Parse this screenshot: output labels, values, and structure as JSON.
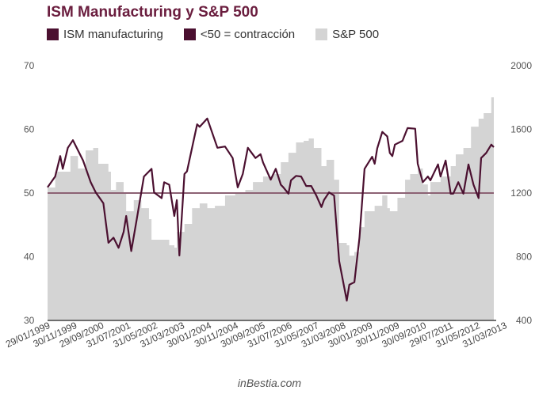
{
  "chart_data": {
    "type": "line",
    "title": "ISM Manufacturing y S&P 500",
    "legend": [
      {
        "label": "ISM manufacturing",
        "color": "#4b1030"
      },
      {
        "label": "<50 = contracción",
        "color": "#4b1030"
      },
      {
        "label": "S&P 500",
        "color": "#d4d4d4"
      }
    ],
    "legend_placement": "top-left",
    "grid": false,
    "left_axis": {
      "range": [
        30,
        70
      ],
      "ticks": [
        "70",
        "60",
        "50",
        "40",
        "30"
      ]
    },
    "right_axis": {
      "range": [
        400,
        2000
      ],
      "ticks": [
        "2000",
        "1600",
        "1200",
        "800",
        "400"
      ]
    },
    "x_range": [
      "1999-01",
      "2013-09"
    ],
    "x_tick_labels": [
      "29/01/1999",
      "30/11/1999",
      "29/09/2000",
      "31/07/2001",
      "31/05/2002",
      "31/03/2003",
      "30/01/2004",
      "30/11/2004",
      "30/09/2005",
      "31/07/2006",
      "31/05/2007",
      "31/03/2008",
      "30/01/2009",
      "30/11/2009",
      "30/09/2010",
      "29/07/2011",
      "31/05/2012",
      "31/03/2013"
    ],
    "threshold": 50,
    "series": [
      {
        "name": "ISM manufacturing",
        "axis": "left",
        "type": "line",
        "color": "#4b1030",
        "points": [
          [
            "1999-01",
            50.9
          ],
          [
            "1999-04",
            52.6
          ],
          [
            "1999-06",
            55.8
          ],
          [
            "1999-07",
            53.8
          ],
          [
            "1999-09",
            57.1
          ],
          [
            "1999-11",
            58.3
          ],
          [
            "2000-03",
            55.1
          ],
          [
            "2000-06",
            51.7
          ],
          [
            "2000-08",
            50.1
          ],
          [
            "2000-11",
            48.4
          ],
          [
            "2001-01",
            42.2
          ],
          [
            "2001-03",
            43.0
          ],
          [
            "2001-05",
            41.4
          ],
          [
            "2001-07",
            43.9
          ],
          [
            "2001-08",
            46.4
          ],
          [
            "2001-10",
            40.9
          ],
          [
            "2001-12",
            45.5
          ],
          [
            "2002-03",
            52.6
          ],
          [
            "2002-06",
            53.8
          ],
          [
            "2002-07",
            50.1
          ],
          [
            "2002-10",
            49.2
          ],
          [
            "2002-11",
            51.7
          ],
          [
            "2003-01",
            51.3
          ],
          [
            "2003-03",
            46.4
          ],
          [
            "2003-04",
            48.9
          ],
          [
            "2003-05",
            40.2
          ],
          [
            "2003-07",
            53.0
          ],
          [
            "2003-08",
            53.4
          ],
          [
            "2003-12",
            60.8
          ],
          [
            "2004-01",
            60.4
          ],
          [
            "2004-04",
            61.7
          ],
          [
            "2004-08",
            57.1
          ],
          [
            "2004-11",
            57.3
          ],
          [
            "2005-02",
            55.5
          ],
          [
            "2005-04",
            50.9
          ],
          [
            "2005-06",
            53.0
          ],
          [
            "2005-08",
            57.1
          ],
          [
            "2005-11",
            55.5
          ],
          [
            "2006-01",
            56.1
          ],
          [
            "2006-02",
            54.8
          ],
          [
            "2006-05",
            52.1
          ],
          [
            "2006-07",
            53.8
          ],
          [
            "2006-09",
            51.3
          ],
          [
            "2006-10",
            50.9
          ],
          [
            "2006-12",
            49.9
          ],
          [
            "2007-01",
            52.0
          ],
          [
            "2007-03",
            52.7
          ],
          [
            "2007-05",
            52.6
          ],
          [
            "2007-07",
            51.1
          ],
          [
            "2007-09",
            51.1
          ],
          [
            "2007-11",
            49.6
          ],
          [
            "2008-01",
            47.8
          ],
          [
            "2008-02",
            48.9
          ],
          [
            "2008-04",
            50.1
          ],
          [
            "2008-06",
            49.6
          ],
          [
            "2008-08",
            39.3
          ],
          [
            "2008-11",
            33.1
          ],
          [
            "2008-12",
            35.6
          ],
          [
            "2009-02",
            36.0
          ],
          [
            "2009-04",
            43.0
          ],
          [
            "2009-06",
            53.8
          ],
          [
            "2009-09",
            55.7
          ],
          [
            "2009-10",
            54.6
          ],
          [
            "2009-11",
            57.0
          ],
          [
            "2010-01",
            59.6
          ],
          [
            "2010-03",
            58.9
          ],
          [
            "2010-04",
            56.3
          ],
          [
            "2010-05",
            55.8
          ],
          [
            "2010-06",
            57.6
          ],
          [
            "2010-09",
            58.2
          ],
          [
            "2010-11",
            60.2
          ],
          [
            "2011-02",
            60.1
          ],
          [
            "2011-03",
            54.6
          ],
          [
            "2011-05",
            51.7
          ],
          [
            "2011-07",
            52.6
          ],
          [
            "2011-08",
            52.0
          ],
          [
            "2011-11",
            54.5
          ],
          [
            "2011-12",
            52.6
          ],
          [
            "2012-02",
            55.1
          ],
          [
            "2012-04",
            49.9
          ],
          [
            "2012-05",
            49.9
          ],
          [
            "2012-07",
            51.7
          ],
          [
            "2012-09",
            49.9
          ],
          [
            "2012-11",
            54.5
          ],
          [
            "2013-01",
            51.3
          ],
          [
            "2013-03",
            49.2
          ],
          [
            "2013-04",
            55.5
          ],
          [
            "2013-06",
            56.3
          ],
          [
            "2013-08",
            57.6
          ],
          [
            "2013-09",
            57.2
          ]
        ]
      },
      {
        "name": "S&P 500",
        "axis": "right",
        "type": "area",
        "color": "#d4d4d4",
        "points": [
          [
            "1999-01",
            1235
          ],
          [
            "1999-04",
            1334
          ],
          [
            "1999-10",
            1433
          ],
          [
            "2000-01",
            1354
          ],
          [
            "2000-04",
            1468
          ],
          [
            "2000-07",
            1483
          ],
          [
            "2000-09",
            1384
          ],
          [
            "2001-01",
            1334
          ],
          [
            "2001-02",
            1220
          ],
          [
            "2001-04",
            1269
          ],
          [
            "2001-07",
            1205
          ],
          [
            "2001-08",
            1086
          ],
          [
            "2001-11",
            1155
          ],
          [
            "2002-02",
            1105
          ],
          [
            "2002-05",
            1036
          ],
          [
            "2002-06",
            907
          ],
          [
            "2002-10",
            907
          ],
          [
            "2003-01",
            872
          ],
          [
            "2003-03",
            857
          ],
          [
            "2003-04",
            956
          ],
          [
            "2003-07",
            1006
          ],
          [
            "2003-10",
            1105
          ],
          [
            "2004-01",
            1135
          ],
          [
            "2004-04",
            1105
          ],
          [
            "2004-07",
            1120
          ],
          [
            "2004-11",
            1185
          ],
          [
            "2005-03",
            1205
          ],
          [
            "2005-07",
            1220
          ],
          [
            "2005-10",
            1269
          ],
          [
            "2006-02",
            1304
          ],
          [
            "2006-06",
            1319
          ],
          [
            "2006-09",
            1394
          ],
          [
            "2006-12",
            1453
          ],
          [
            "2007-03",
            1518
          ],
          [
            "2007-06",
            1528
          ],
          [
            "2007-08",
            1543
          ],
          [
            "2007-10",
            1483
          ],
          [
            "2008-01",
            1369
          ],
          [
            "2008-03",
            1409
          ],
          [
            "2008-06",
            1284
          ],
          [
            "2008-08",
            887
          ],
          [
            "2008-11",
            872
          ],
          [
            "2008-12",
            807
          ],
          [
            "2009-02",
            830
          ],
          [
            "2009-04",
            986
          ],
          [
            "2009-06",
            1086
          ],
          [
            "2009-10",
            1120
          ],
          [
            "2010-01",
            1185
          ],
          [
            "2010-03",
            1105
          ],
          [
            "2010-04",
            1086
          ],
          [
            "2010-07",
            1170
          ],
          [
            "2010-10",
            1284
          ],
          [
            "2010-12",
            1319
          ],
          [
            "2011-03",
            1354
          ],
          [
            "2011-05",
            1254
          ],
          [
            "2011-07",
            1185
          ],
          [
            "2011-08",
            1269
          ],
          [
            "2011-12",
            1304
          ],
          [
            "2012-04",
            1369
          ],
          [
            "2012-06",
            1443
          ],
          [
            "2012-09",
            1483
          ],
          [
            "2012-12",
            1617
          ],
          [
            "2013-03",
            1667
          ],
          [
            "2013-05",
            1702
          ],
          [
            "2013-08",
            1801
          ],
          [
            "2013-09",
            1856
          ]
        ]
      }
    ],
    "watermark": "inBestia.com"
  }
}
